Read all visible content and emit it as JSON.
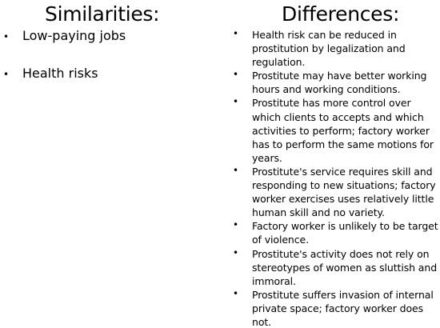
{
  "similarities": {
    "title": "Similarities:",
    "items": [
      "Low-paying jobs",
      "Health risks"
    ]
  },
  "differences": {
    "title": "Differences:",
    "items": [
      "Health risk can be reduced in prostitution by legalization and regulation.",
      "Prostitute may have better working hours and working conditions.",
      "Prostitute has more control over which clients to accepts and which activities to perform; factory worker has to perform the same motions for years.",
      "Prostitute's service requires skill and responding to new situations; factory worker exercises uses relatively little human skill and no variety.",
      "Factory worker is unlikely to be target of violence.",
      "Prostitute's activity does not rely on stereotypes of women as sluttish and immoral.",
      "Prostitute suffers invasion of internal private space; factory worker does not."
    ]
  },
  "bullet_glyph": "•"
}
